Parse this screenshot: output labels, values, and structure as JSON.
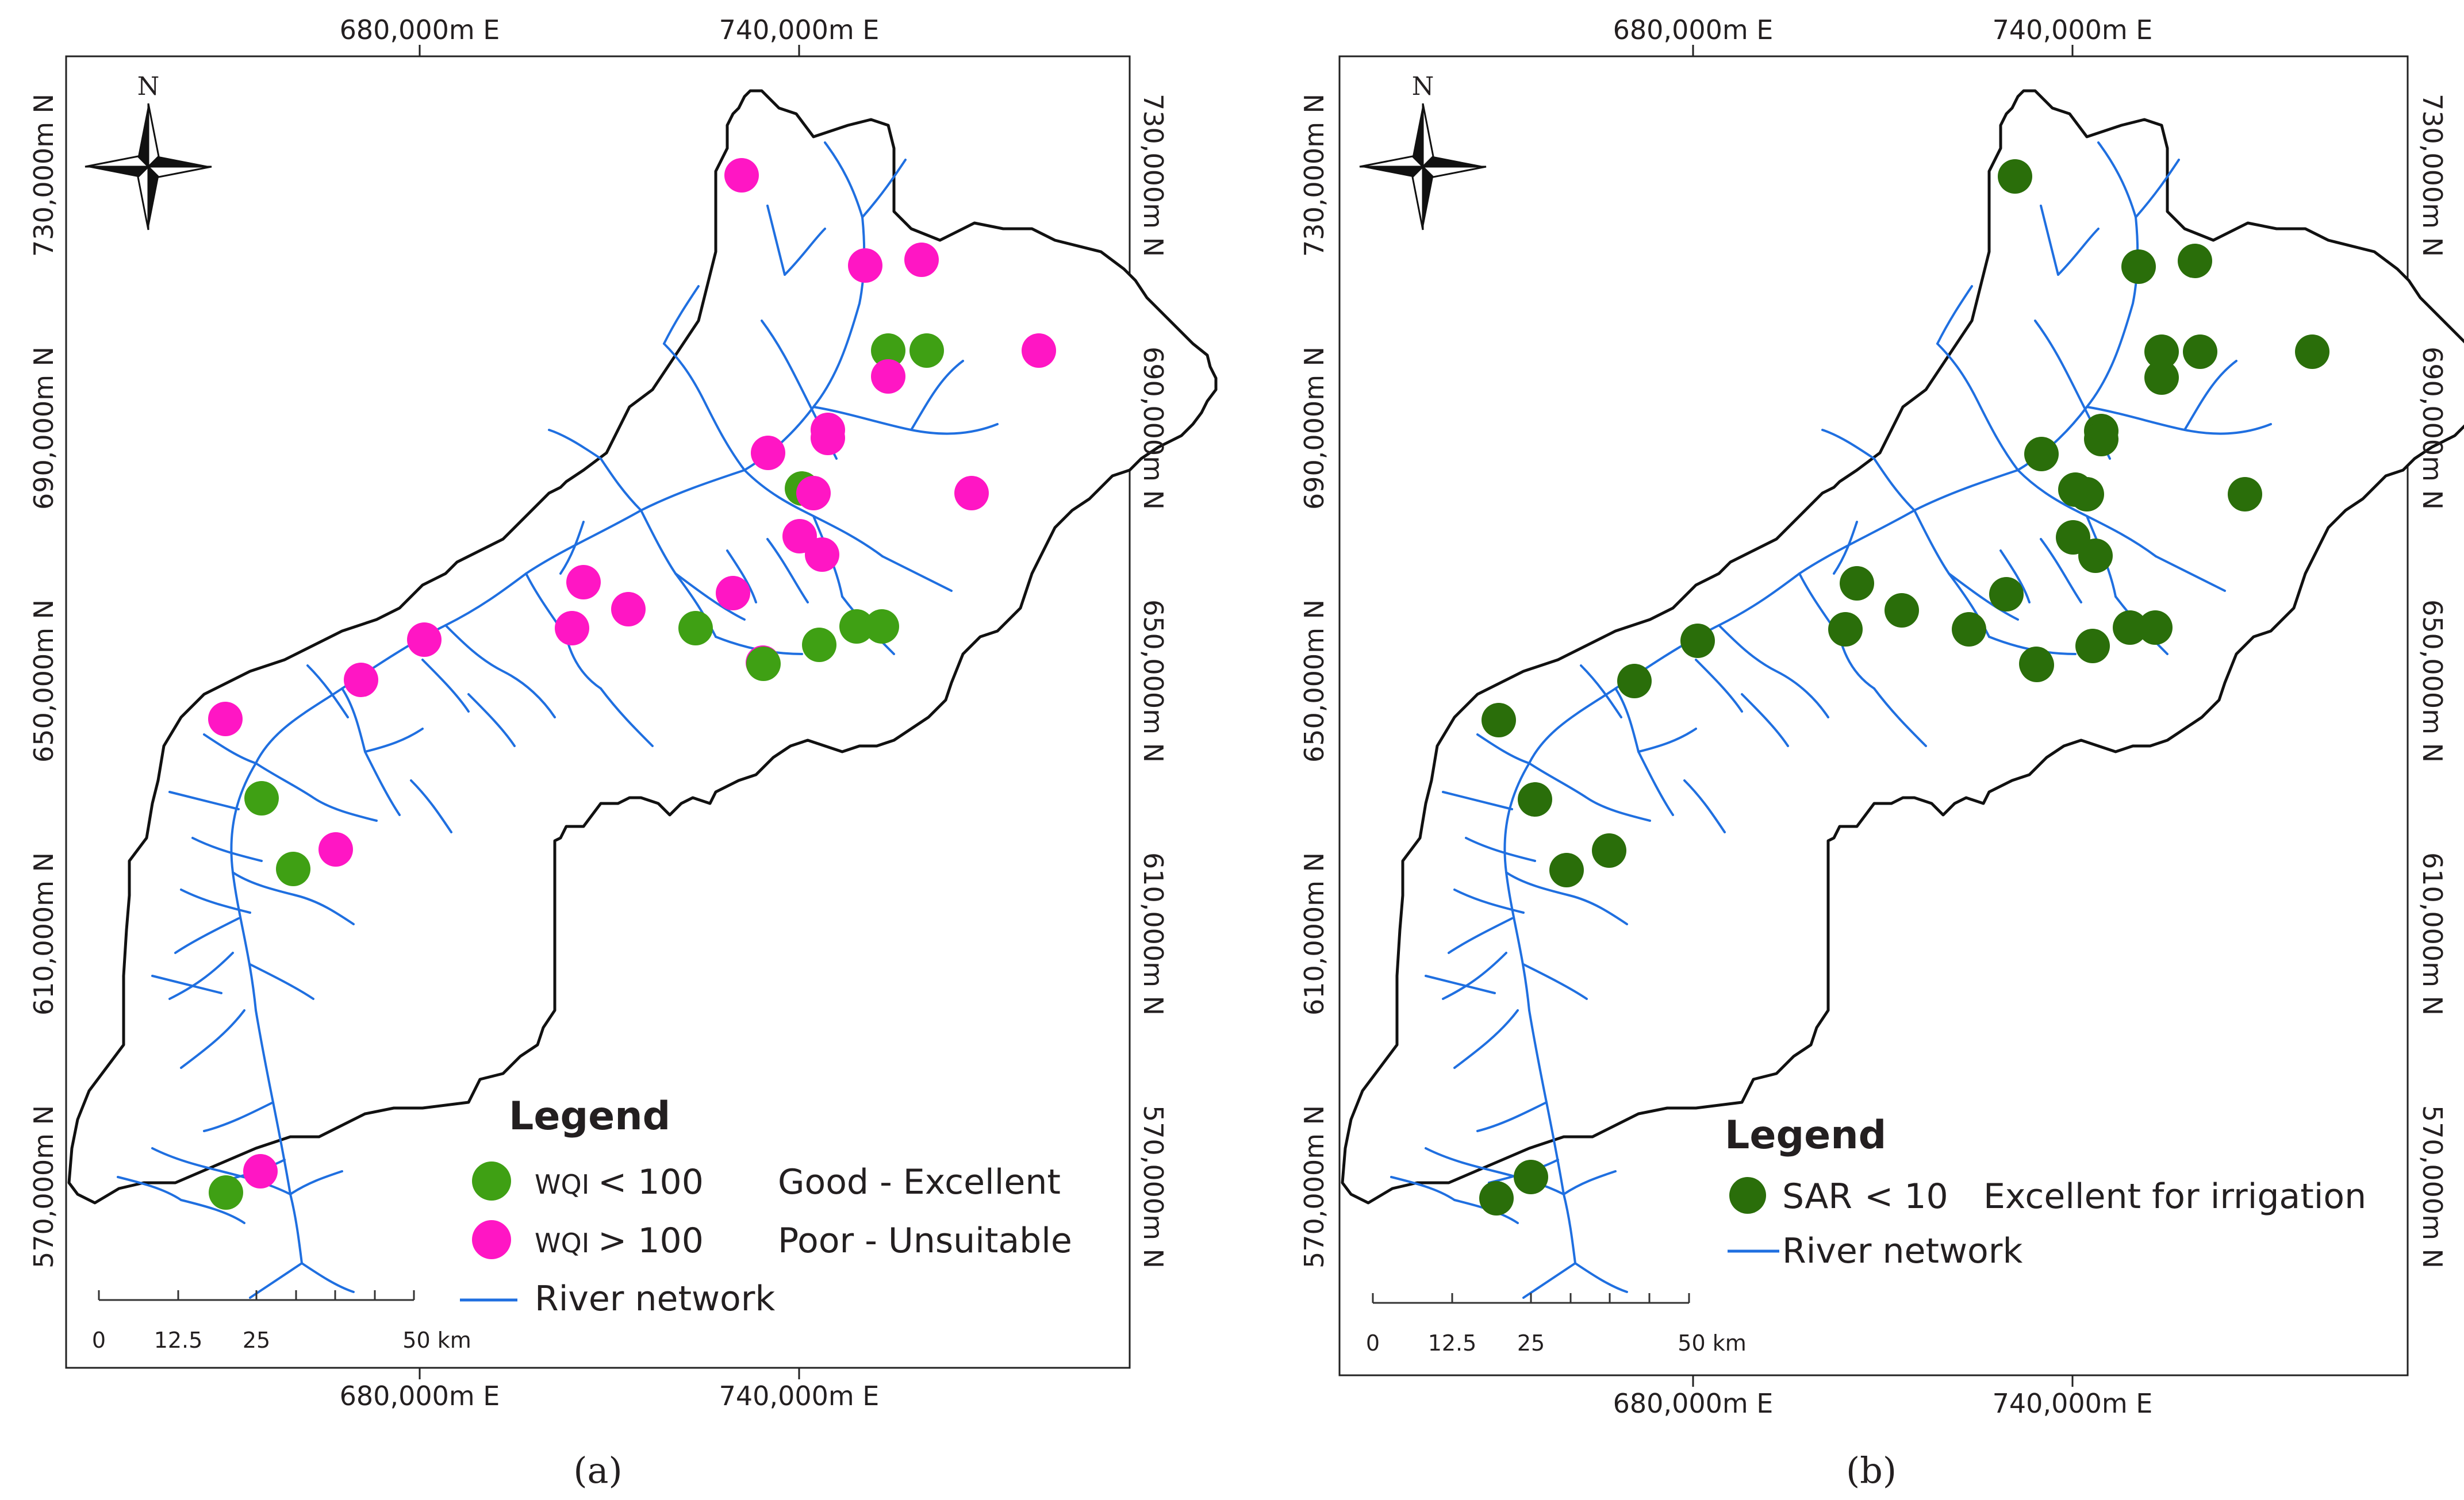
{
  "panels": [
    {
      "id": "a",
      "caption": "(a)",
      "x_labels": [
        "680,000m E",
        "740,000m E"
      ],
      "y_labels": [
        "730,000m N",
        "690,000m N",
        "650,000m N",
        "610,000m N",
        "570,000m N"
      ],
      "north_label": "N",
      "legend": {
        "title": "Legend",
        "items": [
          {
            "param": "WQI",
            "op": "< 100",
            "label": "Good - Excellent",
            "color": "#3fa014"
          },
          {
            "param": "WQI",
            "op": "> 100",
            "label": "Poor - Unsuitable",
            "color": "#ff16c4"
          }
        ],
        "river_label": "River network"
      },
      "scale": {
        "ticks": [
          "0",
          "12.5",
          "25",
          "50 km"
        ]
      }
    },
    {
      "id": "b",
      "caption": "(b)",
      "x_labels": [
        "680,000m E",
        "740,000m E"
      ],
      "y_labels": [
        "730,000m N",
        "690,000m N",
        "650,000m N",
        "610,000m N",
        "570,000m N"
      ],
      "north_label": "N",
      "legend": {
        "title": "Legend",
        "items": [
          {
            "param": "SAR",
            "op": "< 10",
            "label": "Excellent for irrigation",
            "color": "#2a6e0a"
          }
        ],
        "river_label": "River network"
      },
      "scale": {
        "ticks": [
          "0",
          "12.5",
          "25",
          "50 km"
        ]
      }
    }
  ],
  "colors": {
    "river": "#1f6fe0",
    "boundary": "#111111",
    "wqi_good": "#3fa014",
    "wqi_poor": "#ff16c4",
    "sar_good": "#2a6e0a"
  },
  "samples": [
    {
      "id": 1,
      "wqi": "poor",
      "sar": "good"
    },
    {
      "id": 2,
      "wqi": "poor",
      "sar": "good"
    },
    {
      "id": 3,
      "wqi": "poor",
      "sar": "good"
    },
    {
      "id": 4,
      "wqi": "good",
      "sar": "good"
    },
    {
      "id": 5,
      "wqi": "good",
      "sar": "good"
    },
    {
      "id": 6,
      "wqi": "poor",
      "sar": "good"
    },
    {
      "id": 7,
      "wqi": "poor",
      "sar": "good"
    },
    {
      "id": 8,
      "wqi": "poor",
      "sar": "good"
    },
    {
      "id": 9,
      "wqi": "poor",
      "sar": "good"
    },
    {
      "id": 10,
      "wqi": "poor",
      "sar": "good"
    },
    {
      "id": 11,
      "wqi": "good",
      "sar": "good"
    },
    {
      "id": 12,
      "wqi": "poor",
      "sar": "good"
    },
    {
      "id": 13,
      "wqi": "poor",
      "sar": "good"
    },
    {
      "id": 14,
      "wqi": "poor",
      "sar": "good"
    },
    {
      "id": 15,
      "wqi": "poor",
      "sar": "good"
    },
    {
      "id": 16,
      "wqi": "poor",
      "sar": "good"
    },
    {
      "id": 17,
      "wqi": "poor",
      "sar": "good"
    },
    {
      "id": 18,
      "wqi": "poor",
      "sar": "good"
    },
    {
      "id": 19,
      "wqi": "poor",
      "sar": "good"
    },
    {
      "id": 20,
      "wqi": "good",
      "sar": "good"
    },
    {
      "id": 21,
      "wqi": "good",
      "sar": "good"
    },
    {
      "id": 22,
      "wqi": "good",
      "sar": "good"
    },
    {
      "id": 23,
      "wqi": "good",
      "sar": "good"
    },
    {
      "id": 24,
      "wqi": "poor",
      "sar": "good"
    },
    {
      "id": 25,
      "wqi": "poor",
      "sar": "good"
    },
    {
      "id": 26,
      "wqi": "poor",
      "sar": "good"
    },
    {
      "id": 27,
      "wqi": "good",
      "sar": "good"
    },
    {
      "id": 28,
      "wqi": "poor",
      "sar": "good"
    },
    {
      "id": 29,
      "wqi": "good",
      "sar": "good"
    },
    {
      "id": 30,
      "wqi": "poor",
      "sar": "good"
    },
    {
      "id": 31,
      "wqi": "good",
      "sar": "good"
    }
  ]
}
